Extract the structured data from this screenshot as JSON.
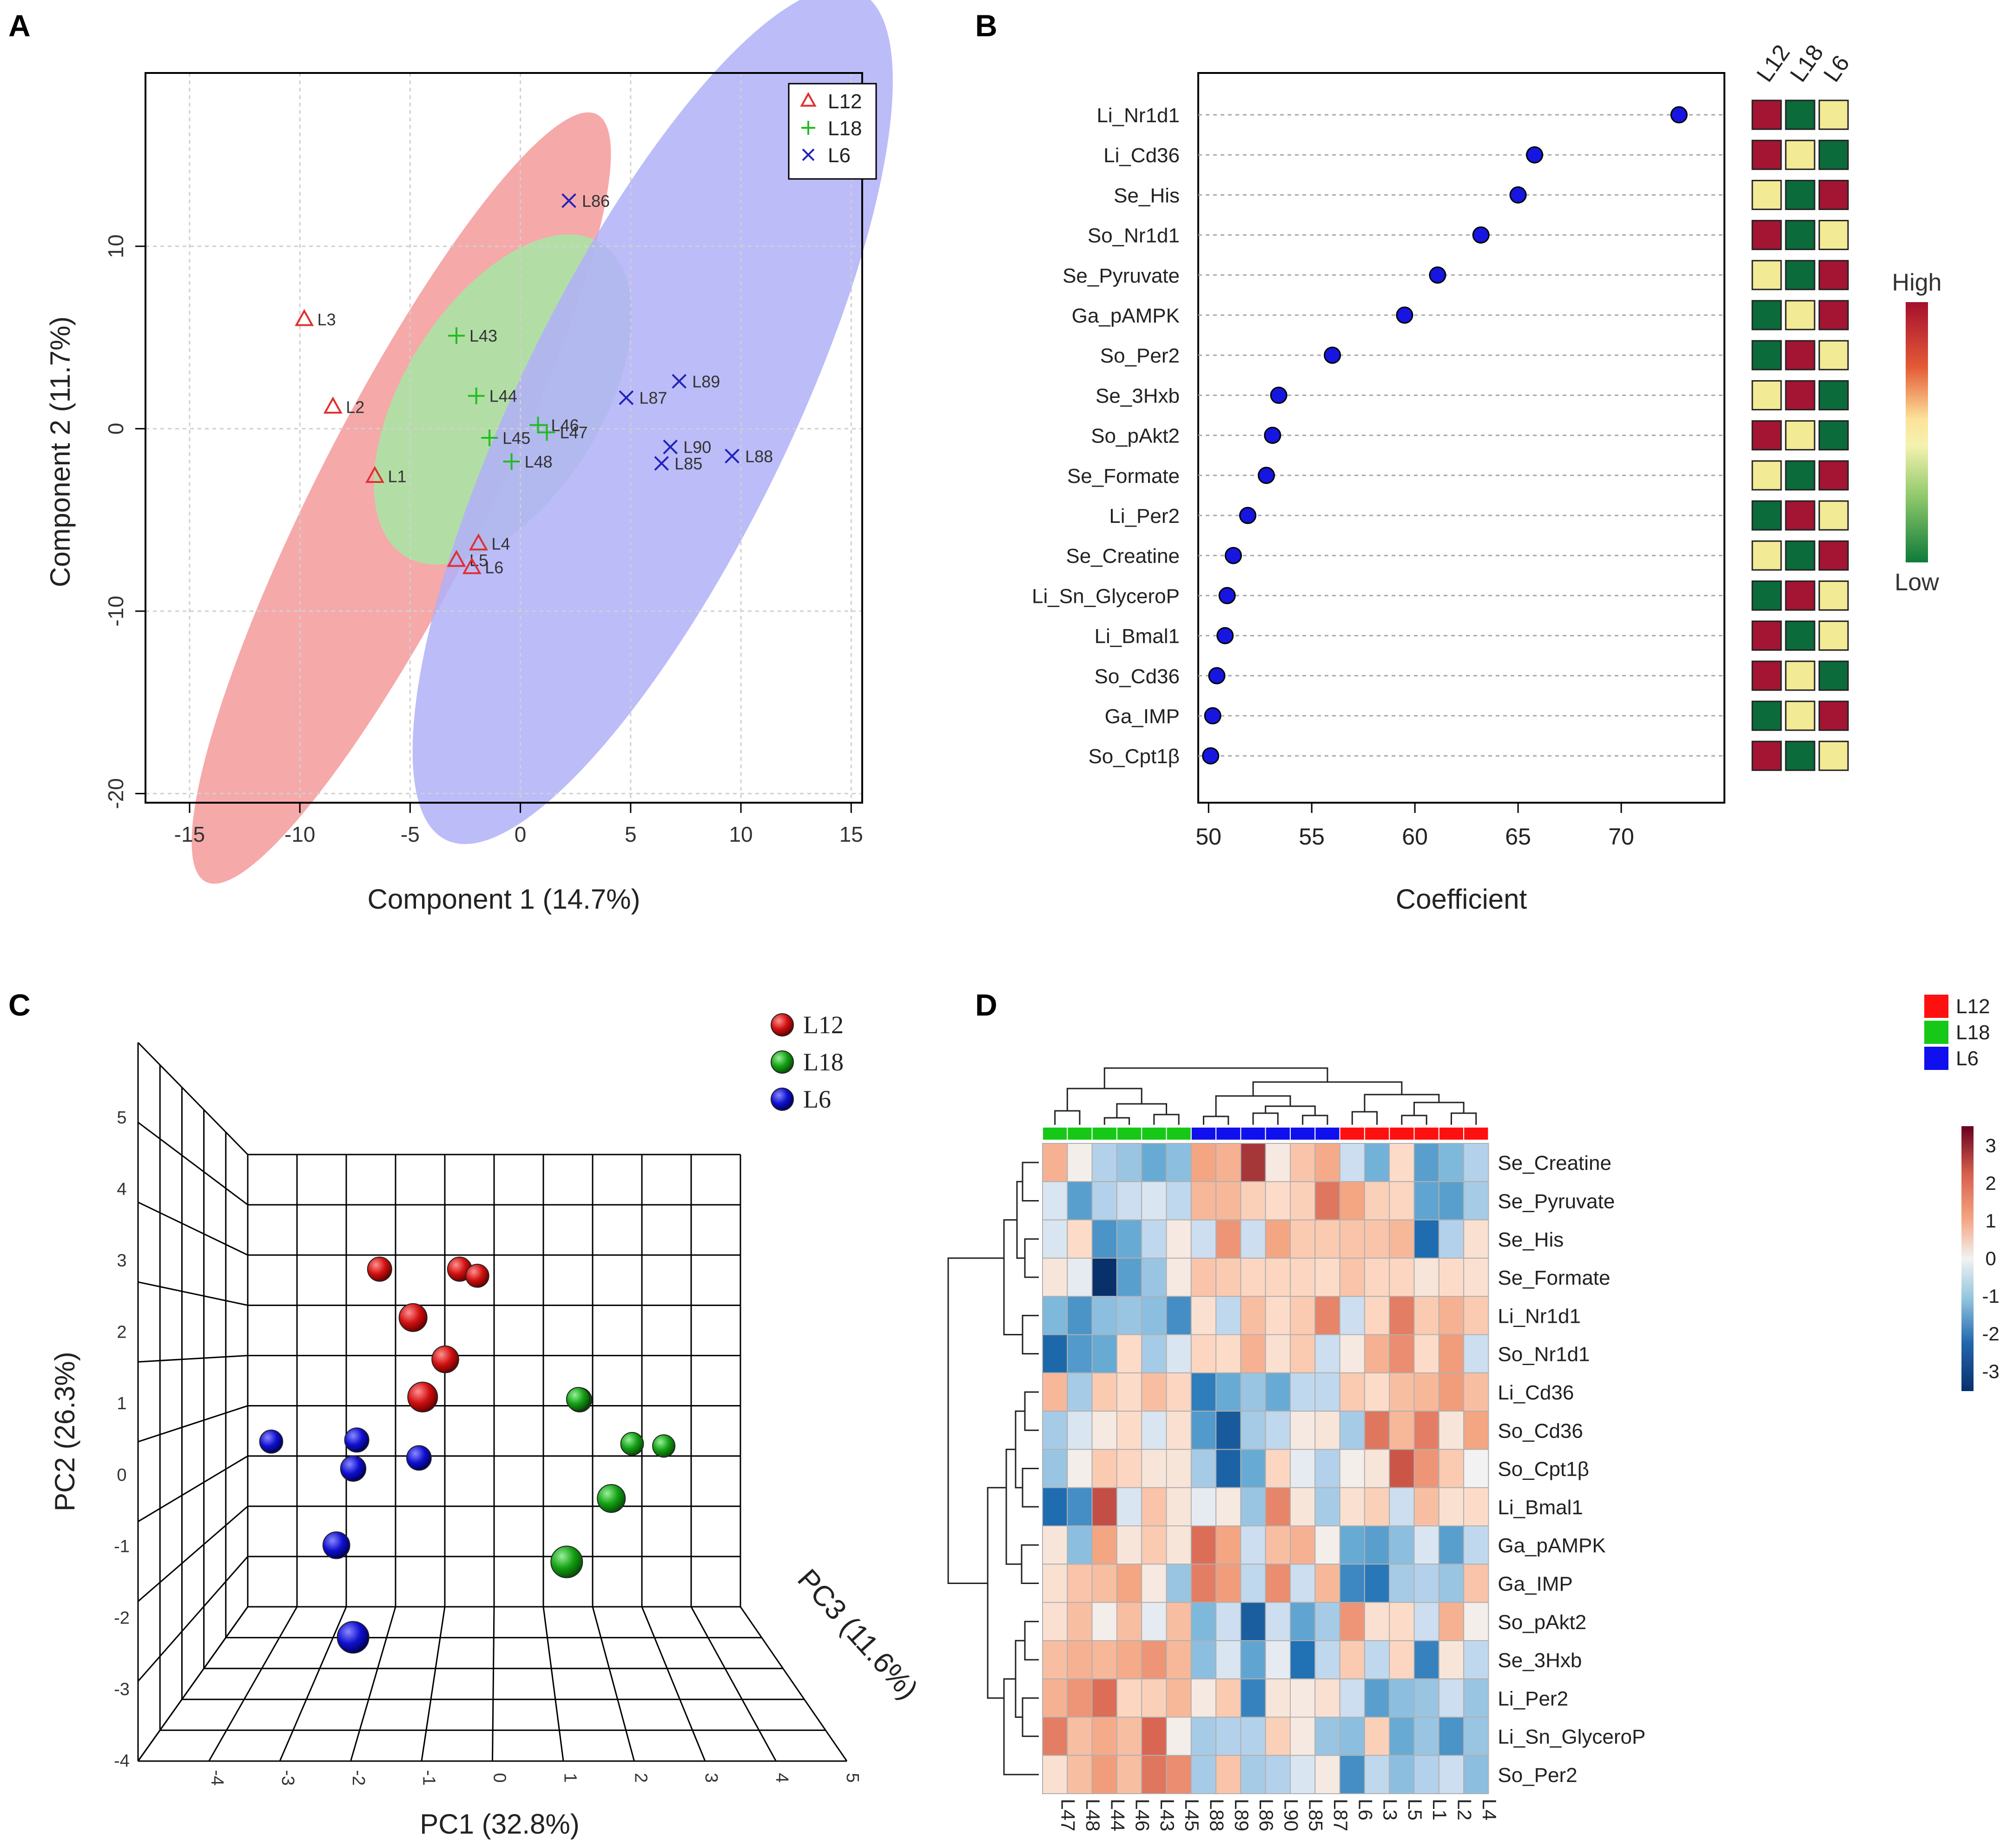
{
  "colors": {
    "L12": "#e03030",
    "L18": "#22bb22",
    "L6": "#2222bb",
    "ellipse_L12": "#f59a9a",
    "ellipse_L18": "#a6e8a6",
    "ellipse_L6": "#b0b0f8",
    "dot": "#1616e0",
    "heat_low": "#08306b",
    "heat_mid": "#f7f7f7",
    "heat_high": "#67001f",
    "cell_red": "#a31533",
    "cell_green": "#0b6b3a",
    "cell_yellow": "#f3ea96",
    "group_L12": "#ff1010",
    "group_L18": "#18c818",
    "group_L6": "#1010ee"
  },
  "chart_data": [
    {
      "panel_label": "A",
      "type": "scatter",
      "xlabel": "Component 1 (14.7%)",
      "ylabel": "Component 2 (11.7%)",
      "xlim": [
        -17,
        15.5
      ],
      "ylim": [
        -20.5,
        19.5
      ],
      "xticks": [
        "-15",
        "-10",
        "-5",
        "0",
        "5",
        "10",
        "15"
      ],
      "yticks": [
        "10",
        "0",
        "-10",
        "-20"
      ],
      "legend": [
        "L12",
        "L18",
        "L6"
      ],
      "legend_position": "top-right",
      "grid": true,
      "series": [
        {
          "name": "L12",
          "marker": "triangle",
          "points": [
            {
              "label": "L3",
              "x": -9.8,
              "y": 6.0
            },
            {
              "label": "L2",
              "x": -8.5,
              "y": 1.2
            },
            {
              "label": "L1",
              "x": -6.6,
              "y": -2.6
            },
            {
              "label": "L4",
              "x": -1.9,
              "y": -6.3
            },
            {
              "label": "L5",
              "x": -2.9,
              "y": -7.2
            },
            {
              "label": "L6",
              "x": -2.2,
              "y": -7.6
            }
          ]
        },
        {
          "name": "L18",
          "marker": "plus",
          "points": [
            {
              "label": "L43",
              "x": -2.9,
              "y": 5.1
            },
            {
              "label": "L44",
              "x": -2.0,
              "y": 1.8
            },
            {
              "label": "L46",
              "x": 0.8,
              "y": 0.2
            },
            {
              "label": "L47",
              "x": 1.2,
              "y": -0.2
            },
            {
              "label": "L45",
              "x": -1.4,
              "y": -0.5
            },
            {
              "label": "L48",
              "x": -0.4,
              "y": -1.8
            }
          ]
        },
        {
          "name": "L6",
          "marker": "cross",
          "points": [
            {
              "label": "L86",
              "x": 2.2,
              "y": 12.5
            },
            {
              "label": "L89",
              "x": 7.2,
              "y": 2.6
            },
            {
              "label": "L87",
              "x": 4.8,
              "y": 1.7
            },
            {
              "label": "L90",
              "x": 6.8,
              "y": -1.0
            },
            {
              "label": "L85",
              "x": 6.4,
              "y": -1.9
            },
            {
              "label": "L88",
              "x": 9.6,
              "y": -1.5
            }
          ]
        }
      ]
    },
    {
      "panel_label": "B",
      "type": "scatter",
      "subtype": "dot-plot",
      "xlabel": "Coefficient",
      "xlim": [
        49.5,
        75
      ],
      "xticks": [
        "50",
        "55",
        "60",
        "65",
        "70"
      ],
      "columns": [
        "L12",
        "L18",
        "L6"
      ],
      "color_scale": {
        "high": "High",
        "low": "Low"
      },
      "rows": [
        {
          "label": "Li_Nr1d1",
          "value": 72.8,
          "cells": [
            "red",
            "green",
            "yellow"
          ]
        },
        {
          "label": "Li_Cd36",
          "value": 65.8,
          "cells": [
            "red",
            "yellow",
            "green"
          ]
        },
        {
          "label": "Se_His",
          "value": 65.0,
          "cells": [
            "yellow",
            "green",
            "red"
          ]
        },
        {
          "label": "So_Nr1d1",
          "value": 63.2,
          "cells": [
            "red",
            "green",
            "yellow"
          ]
        },
        {
          "label": "Se_Pyruvate",
          "value": 61.1,
          "cells": [
            "yellow",
            "green",
            "red"
          ]
        },
        {
          "label": "Ga_pAMPK",
          "value": 59.5,
          "cells": [
            "green",
            "yellow",
            "red"
          ]
        },
        {
          "label": "So_Per2",
          "value": 56.0,
          "cells": [
            "green",
            "red",
            "yellow"
          ]
        },
        {
          "label": "Se_3Hxb",
          "value": 53.4,
          "cells": [
            "yellow",
            "red",
            "green"
          ]
        },
        {
          "label": "So_pAkt2",
          "value": 53.1,
          "cells": [
            "red",
            "yellow",
            "green"
          ]
        },
        {
          "label": "Se_Formate",
          "value": 52.8,
          "cells": [
            "yellow",
            "green",
            "red"
          ]
        },
        {
          "label": "Li_Per2",
          "value": 51.9,
          "cells": [
            "green",
            "red",
            "yellow"
          ]
        },
        {
          "label": "Se_Creatine",
          "value": 51.2,
          "cells": [
            "yellow",
            "green",
            "red"
          ]
        },
        {
          "label": "Li_Sn_GlyceroP",
          "value": 50.9,
          "cells": [
            "green",
            "red",
            "yellow"
          ]
        },
        {
          "label": "Li_Bmal1",
          "value": 50.8,
          "cells": [
            "red",
            "green",
            "yellow"
          ]
        },
        {
          "label": "So_Cd36",
          "value": 50.4,
          "cells": [
            "red",
            "yellow",
            "green"
          ]
        },
        {
          "label": "Ga_IMP",
          "value": 50.2,
          "cells": [
            "green",
            "yellow",
            "red"
          ]
        },
        {
          "label": "So_Cpt1β",
          "value": 50.1,
          "cells": [
            "red",
            "green",
            "yellow"
          ]
        }
      ]
    },
    {
      "panel_label": "C",
      "type": "scatter",
      "subtype": "3d",
      "xlabel": "PC1 (32.8%)",
      "ylabel": "PC2 (26.3%)",
      "zlabel": "PC3 (11.6%)",
      "xticks": [
        "-4",
        "-3",
        "-2",
        "-1",
        "0",
        "1",
        "2",
        "3",
        "4",
        "5"
      ],
      "yticks": [
        "5",
        "4",
        "3",
        "2",
        "1",
        "0",
        "-1",
        "-2",
        "-3",
        "-4"
      ],
      "legend": [
        "L12",
        "L18",
        "L6"
      ],
      "legend_position": "top-right",
      "series": [
        {
          "name": "L12",
          "points": [
            {
              "pc1": -1.5,
              "pc2": 3.0,
              "pc3": 0.5
            },
            {
              "pc1": -0.1,
              "pc2": 3.0,
              "pc3": 0.5
            },
            {
              "pc1": 0.2,
              "pc2": 2.7,
              "pc3": 0.2
            },
            {
              "pc1": -0.8,
              "pc2": 2.6,
              "pc3": 1.5
            },
            {
              "pc1": -0.3,
              "pc2": 1.6,
              "pc3": 1.2
            },
            {
              "pc1": -0.6,
              "pc2": 1.3,
              "pc3": 2.0
            }
          ]
        },
        {
          "name": "L18",
          "points": [
            {
              "pc1": 2.0,
              "pc2": 0.4,
              "pc3": 0.5
            },
            {
              "pc1": 2.0,
              "pc2": 0.3,
              "pc3": 0.3
            },
            {
              "pc1": 3.0,
              "pc2": -0.7,
              "pc3": 0.1
            },
            {
              "pc1": 3.6,
              "pc2": -0.8,
              "pc3": -0.2
            },
            {
              "pc1": 2.4,
              "pc2": -1.0,
              "pc3": 1.5
            },
            {
              "pc1": 1.6,
              "pc2": -1.7,
              "pc3": 2.5
            }
          ]
        },
        {
          "name": "L6",
          "points": [
            {
              "pc1": -3.5,
              "pc2": -0.6,
              "pc3": 0.2
            },
            {
              "pc1": -1.9,
              "pc2": -0.4,
              "pc3": 0.5
            },
            {
              "pc1": -1.9,
              "pc2": -0.8,
              "pc3": 0.8
            },
            {
              "pc1": -0.8,
              "pc2": -0.7,
              "pc3": 0.6
            },
            {
              "pc1": -2.1,
              "pc2": -2.1,
              "pc3": 1.2
            },
            {
              "pc1": -1.6,
              "pc2": -3.2,
              "pc3": 2.5
            }
          ]
        }
      ]
    },
    {
      "panel_label": "D",
      "type": "heatmap",
      "columns": [
        "L47",
        "L48",
        "L44",
        "L46",
        "L43",
        "L45",
        "L88",
        "L89",
        "L86",
        "L90",
        "L85",
        "L87",
        "L6",
        "L3",
        "L5",
        "L1",
        "L2",
        "L4"
      ],
      "column_groups": [
        "L18",
        "L18",
        "L18",
        "L18",
        "L18",
        "L18",
        "L6",
        "L6",
        "L6",
        "L6",
        "L6",
        "L6",
        "L12",
        "L12",
        "L12",
        "L12",
        "L12",
        "L12"
      ],
      "rows": [
        "Se_Creatine",
        "Se_Pyruvate",
        "Se_His",
        "Se_Formate",
        "Li_Nr1d1",
        "So_Nr1d1",
        "Li_Cd36",
        "So_Cd36",
        "So_Cpt1β",
        "Li_Bmal1",
        "Ga_pAMPK",
        "Ga_IMP",
        "So_pAkt2",
        "Se_3Hxb",
        "Li_Per2",
        "Li_Sn_GlyceroP",
        "So_Per2"
      ],
      "color_scale": {
        "min": -3.5,
        "max": 3.5,
        "ticks": [
          "3",
          "2",
          "1",
          "0",
          "-1",
          "-2",
          "-3"
        ]
      },
      "legend": [
        "L12",
        "L18",
        "L6"
      ],
      "legend_position": "top-right",
      "values": [
        [
          1.2,
          0.1,
          -0.5,
          -0.7,
          -1.1,
          -0.8,
          1.4,
          1.2,
          2.8,
          0.2,
          0.9,
          1.3,
          -0.3,
          -1.0,
          0.5,
          -1.3,
          -0.9,
          -0.5
        ],
        [
          -0.2,
          -1.3,
          -0.5,
          -0.3,
          -0.2,
          -0.4,
          1.1,
          1.1,
          0.7,
          0.5,
          0.7,
          2.0,
          1.4,
          0.7,
          0.6,
          -1.2,
          -1.3,
          -0.6
        ],
        [
          -0.2,
          0.5,
          -1.5,
          -1.1,
          -0.4,
          0.2,
          -0.3,
          1.6,
          -0.3,
          1.4,
          0.8,
          0.8,
          0.9,
          0.9,
          1.1,
          -2.2,
          -0.5,
          0.4
        ],
        [
          0.3,
          -0.1,
          -3.5,
          -1.3,
          -0.7,
          0.2,
          0.9,
          0.8,
          0.6,
          0.6,
          0.6,
          0.5,
          0.9,
          0.6,
          0.6,
          0.3,
          0.5,
          0.4
        ],
        [
          -0.9,
          -1.5,
          -0.8,
          -0.7,
          -0.8,
          -1.6,
          0.4,
          -0.4,
          1.0,
          0.5,
          0.8,
          1.8,
          -0.3,
          0.6,
          1.9,
          0.8,
          1.2,
          0.8
        ],
        [
          -2.3,
          -1.4,
          -1.1,
          0.5,
          -0.6,
          -0.2,
          0.6,
          0.5,
          1.2,
          0.4,
          0.8,
          -0.3,
          0.2,
          1.2,
          1.7,
          0.5,
          1.5,
          -0.3
        ],
        [
          1.1,
          -0.6,
          0.8,
          0.5,
          1.0,
          0.6,
          -1.9,
          -1.1,
          -0.7,
          -1.1,
          -0.4,
          -0.4,
          0.8,
          0.5,
          1.0,
          1.1,
          1.5,
          1.0
        ],
        [
          -0.6,
          -0.2,
          0.2,
          0.5,
          -0.2,
          0.4,
          -1.4,
          -2.6,
          -0.6,
          -0.4,
          0.2,
          0.3,
          -0.6,
          2.0,
          1.1,
          1.9,
          0.3,
          1.4
        ],
        [
          -0.7,
          0.1,
          0.8,
          0.6,
          0.3,
          0.3,
          -0.6,
          -2.4,
          -1.1,
          0.6,
          -0.1,
          -0.5,
          0.1,
          0.3,
          2.4,
          1.6,
          0.8,
          0.0
        ],
        [
          -2.2,
          -1.6,
          2.5,
          -0.2,
          0.9,
          0.3,
          -0.1,
          0.2,
          -0.7,
          1.8,
          0.3,
          -0.6,
          0.4,
          0.7,
          -0.3,
          1.0,
          0.4,
          0.5
        ],
        [
          0.3,
          -0.8,
          1.4,
          0.3,
          0.8,
          0.3,
          2.1,
          1.4,
          -0.3,
          1.0,
          1.2,
          0.1,
          -1.1,
          -1.3,
          -0.8,
          -0.2,
          -1.3,
          -0.4
        ],
        [
          0.4,
          0.9,
          1.0,
          1.4,
          0.2,
          -0.7,
          1.9,
          1.5,
          -0.4,
          1.7,
          -0.3,
          1.1,
          -1.7,
          -2.0,
          -0.6,
          -0.5,
          -0.7,
          0.9
        ],
        [
          0.4,
          1.0,
          0.1,
          1.0,
          -0.1,
          1.0,
          -0.9,
          -0.3,
          -2.5,
          -0.3,
          -1.2,
          -0.6,
          1.6,
          0.4,
          0.5,
          -0.3,
          1.2,
          0.1
        ],
        [
          1.0,
          1.2,
          1.1,
          1.3,
          1.6,
          1.1,
          -0.8,
          -0.2,
          -1.2,
          -0.1,
          -2.1,
          -0.4,
          0.8,
          -0.4,
          0.6,
          -1.8,
          0.3,
          -0.4
        ],
        [
          1.2,
          1.6,
          2.1,
          0.6,
          0.7,
          1.1,
          0.2,
          0.8,
          -1.8,
          0.3,
          0.2,
          0.4,
          -0.3,
          -1.3,
          -0.8,
          -0.7,
          -0.3,
          -0.7
        ],
        [
          1.9,
          1.0,
          1.3,
          1.0,
          2.2,
          0.1,
          -0.6,
          -0.5,
          -0.5,
          0.7,
          0.2,
          -0.7,
          -0.8,
          0.7,
          -1.1,
          -0.7,
          -1.5,
          -0.7
        ],
        [
          0.4,
          1.0,
          1.5,
          1.0,
          2.0,
          1.7,
          -0.6,
          0.9,
          -0.6,
          -0.5,
          -0.2,
          0.2,
          -1.6,
          -0.4,
          -0.8,
          -0.5,
          -0.3,
          -0.8
        ]
      ]
    }
  ]
}
